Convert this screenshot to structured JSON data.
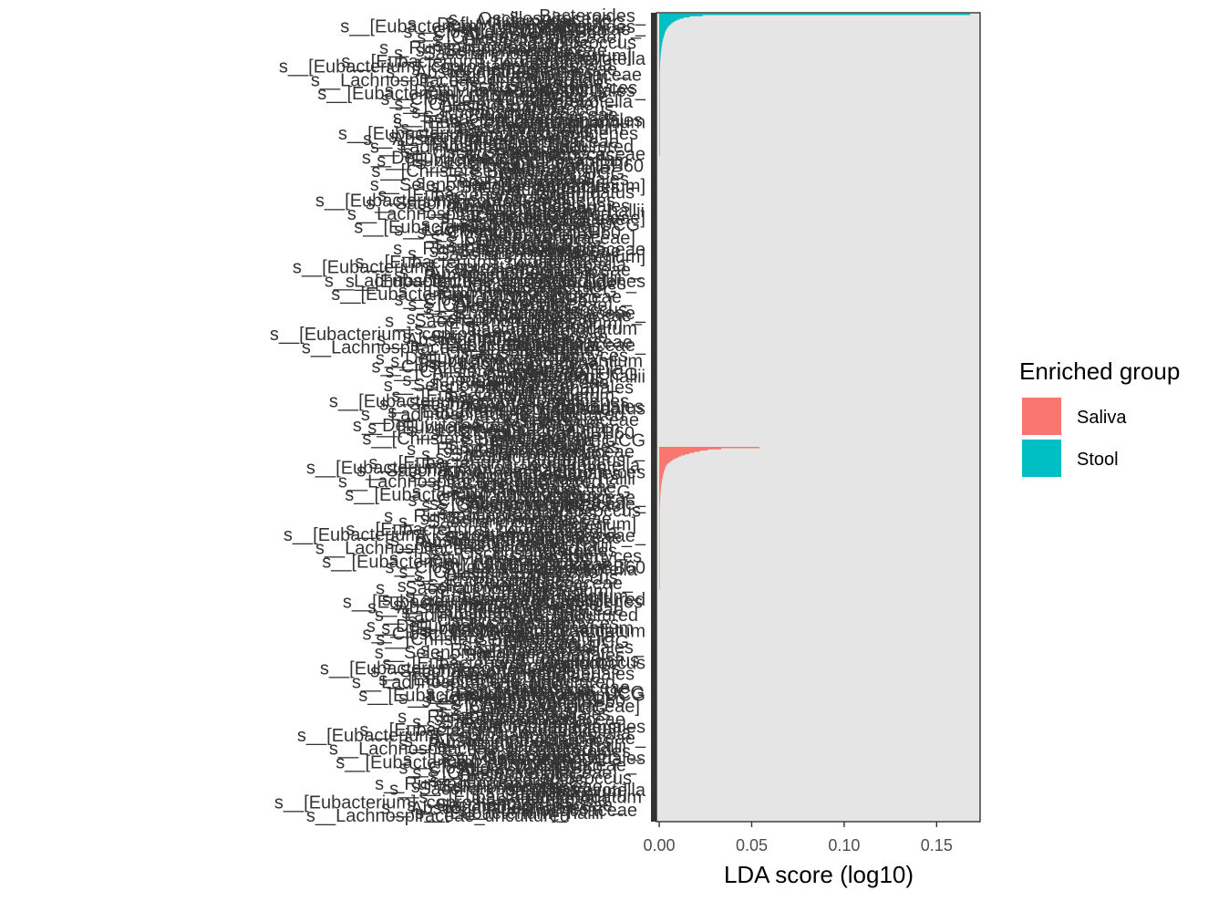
{
  "chart_data": {
    "type": "bar",
    "orientation": "horizontal",
    "title": "",
    "xlabel": "LDA score (log10)",
    "ylabel": "",
    "xlim": [
      -0.0015,
      0.1735
    ],
    "x_ticks": [
      {
        "value": 0.0,
        "label": "0.00"
      },
      {
        "value": 0.05,
        "label": "0.05"
      },
      {
        "value": 0.1,
        "label": "0.10"
      },
      {
        "value": 0.15,
        "label": "0.15"
      }
    ],
    "grid": false,
    "panel_background": "#e5e5e5",
    "legend": {
      "title": "Enriched group",
      "position": "right",
      "entries": [
        {
          "name": "Saliva",
          "color": "#f8766d"
        },
        {
          "name": "Stool",
          "color": "#00bfc4"
        }
      ]
    },
    "series": [
      {
        "name": "Stool",
        "color": "#00bfc4",
        "top_values": [
          0.1682,
          0.0235,
          0.0165,
          0.0132,
          0.011,
          0.0094,
          0.0082,
          0.0072,
          0.0064,
          0.0057,
          0.0051,
          0.0046,
          0.0042,
          0.0038,
          0.0035,
          0.0032
        ]
      },
      {
        "name": "Saliva",
        "color": "#f8766d",
        "top_values": [
          0.0542,
          0.0335,
          0.0262,
          0.0221,
          0.019,
          0.0162,
          0.014,
          0.012,
          0.0104,
          0.009,
          0.0078,
          0.0068,
          0.0059,
          0.0051,
          0.0044,
          0.0038
        ]
      }
    ],
    "y_labels_visible": [
      "s__Bacteroides_",
      "s__Prevotella",
      "s__Rhodospirillales_",
      "s__[Eubacterium]_ruminantium",
      "s__Ruminococcaceae",
      "s__[Eubacterium]",
      "s__[Christensenellaceae]",
      "s__Oscillospiraceae",
      "s__[Eubacterium]_coprostanoligenes",
      "s__Ruminococcaceae_",
      "s__Lachnospiraceae_",
      "s__[Eubacterium]_hallii",
      "s__Candidatus",
      "s__Clostridia_UCG",
      "s__Actinomyces",
      "s__Saccharimonadaceae_",
      "s__Selenomonadaceae_",
      "s__Clostridia_vadinBB60",
      "s__Lachnospiraceae_uncultured",
      "s__[Eubacterium]_nodatum",
      "s__Peptococcus",
      "s__Defluviitaleaceae_UCG",
      "s__Absconditabacteriales",
      "s__Saccharimonadales",
      "s__Alloprevotella"
    ]
  }
}
